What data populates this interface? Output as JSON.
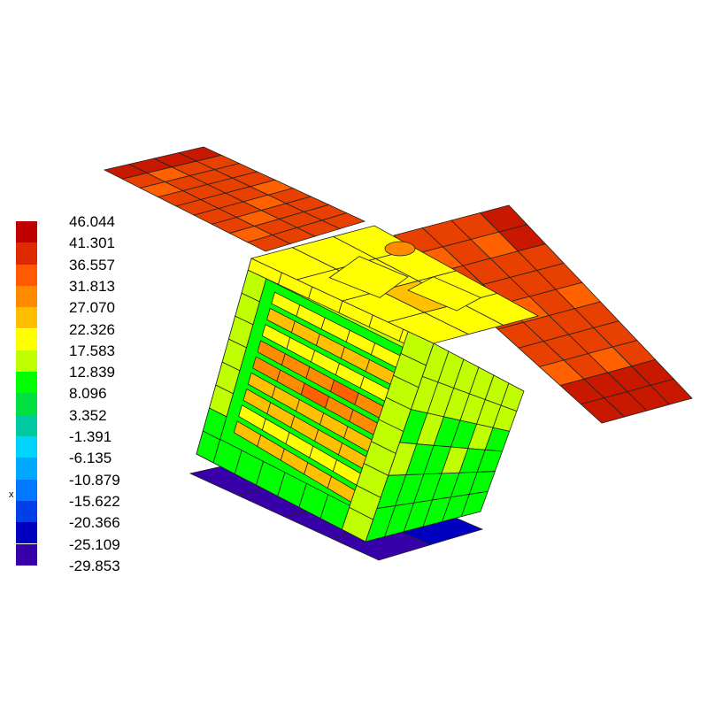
{
  "colorbar": {
    "labels": [
      "46.044",
      "41.301",
      "36.557",
      "31.813",
      "27.070",
      "22.326",
      "17.583",
      "12.839",
      "8.096",
      "3.352",
      "-1.391",
      "-6.135",
      "-10.879",
      "-15.622",
      "-20.366",
      "-25.109",
      "-29.853"
    ],
    "colors": [
      "#c00000",
      "#de2a00",
      "#ff5a00",
      "#ff8c00",
      "#ffbe00",
      "#ffff00",
      "#c0ff00",
      "#00ff00",
      "#00e040",
      "#00c8a0",
      "#00d4ff",
      "#00a8ff",
      "#0078ff",
      "#0040e8",
      "#0000c0",
      "#3800a8"
    ]
  },
  "axis_label": "x",
  "colors": {
    "panel_tip": "#c81800",
    "panel": "#e84000",
    "panel_light": "#ff6000",
    "top_face": "#ffff00",
    "frame": "#c0ff00",
    "frame_low": "#00ff00",
    "shelf": "#ffc000",
    "shelf_hot": "#ff8c00",
    "base_plate": "#3800a8",
    "base_plate_dark": "#0000c0"
  }
}
